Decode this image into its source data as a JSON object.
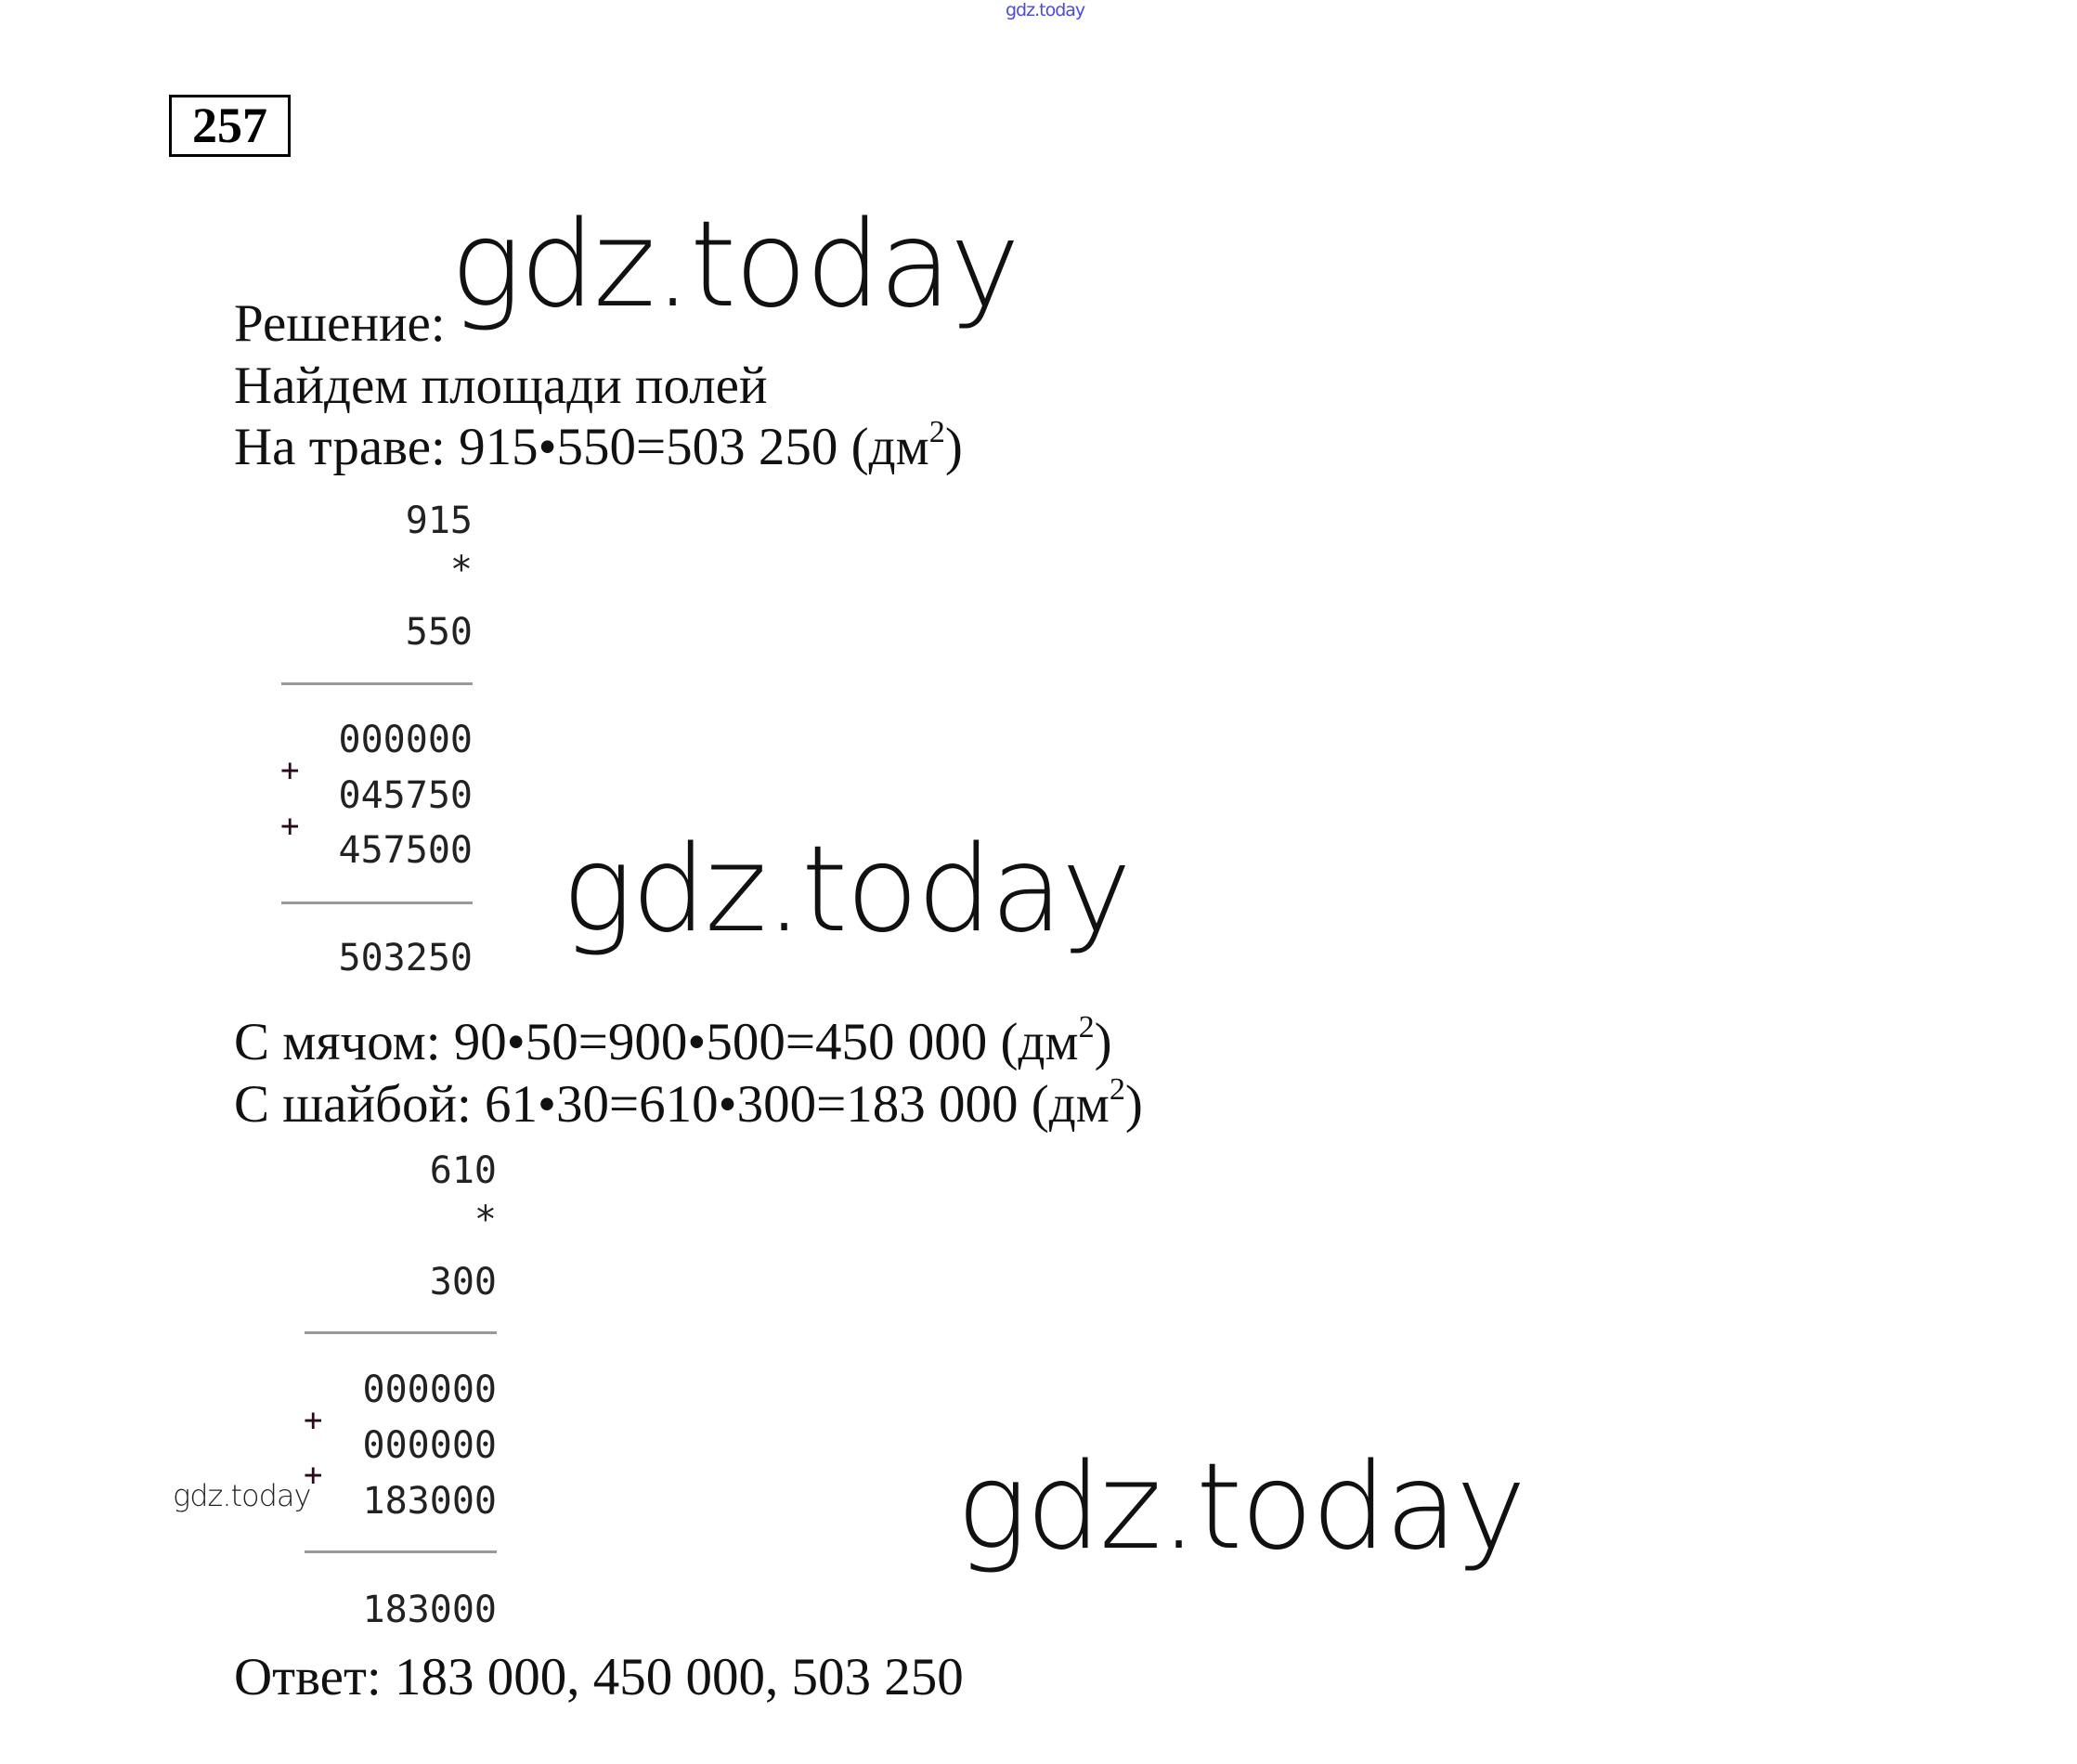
{
  "watermark": {
    "top": "gdz.today",
    "large": "gdz.today",
    "small": "gdz.today"
  },
  "task_number": "257",
  "lines": {
    "solution": "Решение:",
    "find": "Найдем площади полей",
    "grass": "На траве: 915•550=503 250 (дм",
    "ball": "С мячом: 90•50=900•500=450 000 (дм",
    "puck": "С шайбой: 61•30=610•300=183 000 (дм",
    "answer": "Ответ: 183 000, 450 000, 503 250",
    "unit_exp": "2",
    "close": ")"
  },
  "calc1": {
    "a": "915",
    "op": "*",
    "b": "550",
    "p1": "000000",
    "p2": "045750",
    "p3": "457500",
    "plus": "+",
    "result": "503250"
  },
  "calc2": {
    "a": "610",
    "op": "*",
    "b": "300",
    "p1": "000000",
    "p2": "000000",
    "p3": "183000",
    "plus": "+",
    "result": "183000"
  },
  "colors": {
    "top_watermark": "#4a4ae0"
  }
}
